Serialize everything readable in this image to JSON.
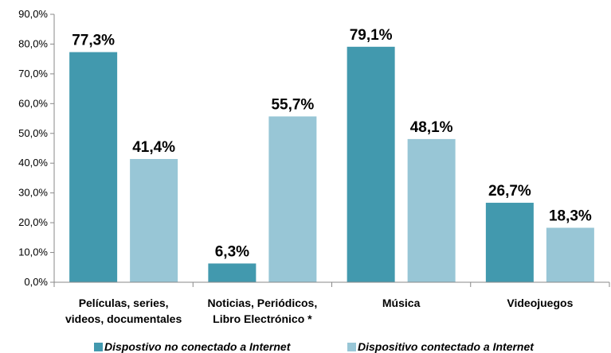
{
  "chart_data": {
    "type": "bar",
    "categories": [
      [
        "Películas, series,",
        "videos, documentales"
      ],
      [
        "Noticias, Periódicos,",
        "Libro Electrónico *"
      ],
      [
        "Música"
      ],
      [
        "Videojuegos"
      ]
    ],
    "series": [
      {
        "name": "Dispostivo no conectado a Internet",
        "values": [
          77.3,
          6.3,
          79.1,
          26.7
        ],
        "value_labels": [
          "77,3%",
          "6,3%",
          "79,1%",
          "26,7%"
        ],
        "color": "#4299AE"
      },
      {
        "name": "Dispositivo contectado a Internet",
        "values": [
          41.4,
          55.7,
          48.1,
          18.3
        ],
        "value_labels": [
          "41,4%",
          "55,7%",
          "48,1%",
          "18,3%"
        ],
        "color": "#98C6D6"
      }
    ],
    "ylim": [
      0,
      90
    ],
    "y_ticks": [
      0,
      10,
      20,
      30,
      40,
      50,
      60,
      70,
      80,
      90
    ],
    "y_tick_labels": [
      "0,0%",
      "10,0%",
      "20,0%",
      "30,0%",
      "40,0%",
      "50,0%",
      "60,0%",
      "70,0%",
      "80,0%",
      "90,0%"
    ],
    "grid": false,
    "legend_position": "bottom"
  }
}
